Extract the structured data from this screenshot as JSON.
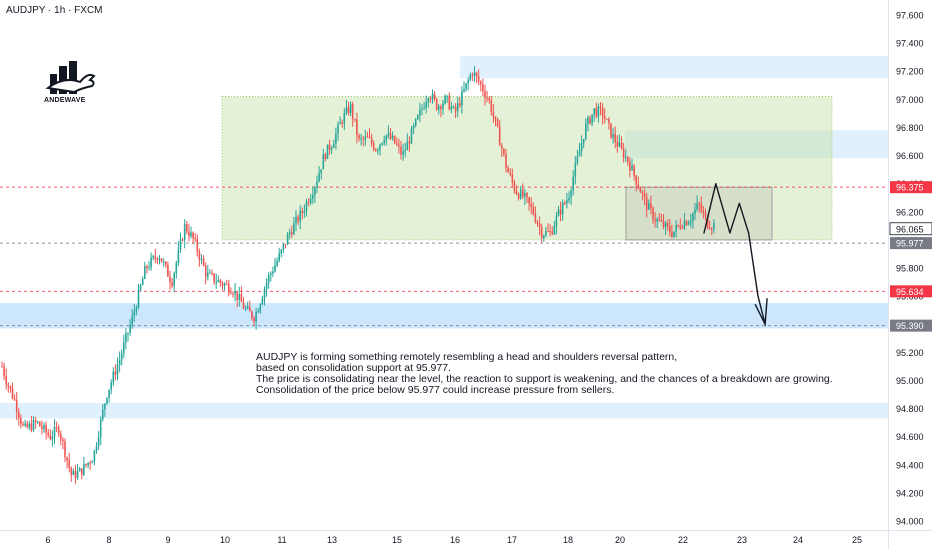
{
  "header": {
    "symbol_line": "AUDJPY · 1h · FXCM"
  },
  "logo": {
    "text": "ANDEWAVE",
    "icon": "bull-and-buildings-logo"
  },
  "annotation": {
    "lines": [
      "AUDJPY is forming something remotely resembling a head and shoulders reversal pattern,",
      "based on consolidation support at 95.977.",
      "The price is consolidating near the level, the reaction to support is weakening, and the chances of a breakdown are growing.",
      "Consolidation of the price below 95.977 could increase pressure from sellers."
    ]
  },
  "colors": {
    "up": "#26a69a",
    "down": "#ef5350",
    "range_box": "#c5e1a5",
    "zone": "#bbdefb",
    "marker_red": "#f23645",
    "marker_gray": "#787b86"
  },
  "chart_data": {
    "type": "candlestick",
    "title": "",
    "x_tick_labels": [
      "6",
      "8",
      "9",
      "10",
      "11",
      "13",
      "15",
      "16",
      "17",
      "18",
      "20",
      "22",
      "23",
      "24",
      "25"
    ],
    "y_ticks": [
      94.0,
      94.2,
      94.4,
      94.6,
      94.8,
      95.0,
      95.2,
      95.4,
      95.6,
      95.8,
      96.0,
      96.2,
      96.4,
      96.6,
      96.8,
      97.0,
      97.2,
      97.4,
      97.6
    ],
    "y_tick_labels": [
      "94.000",
      "94.200",
      "94.400",
      "94.600",
      "94.800",
      "95.000",
      "95.200",
      "95.400",
      "95.600",
      "95.800",
      "96.000",
      "96.200",
      "96.400",
      "96.600",
      "96.800",
      "97.000",
      "97.200",
      "97.400",
      "97.600"
    ],
    "y_range": [
      93.95,
      97.68
    ],
    "price_anchors": [
      [
        6,
        95.1
      ],
      [
        7,
        95.0
      ],
      [
        9,
        94.85
      ],
      [
        11,
        94.65
      ],
      [
        14,
        94.7
      ],
      [
        17,
        94.6
      ],
      [
        19,
        94.66
      ],
      [
        22,
        94.32
      ],
      [
        24,
        94.35
      ],
      [
        27,
        94.46
      ],
      [
        30,
        94.9
      ],
      [
        33,
        95.15
      ],
      [
        36,
        95.45
      ],
      [
        39,
        95.8
      ],
      [
        42,
        95.9
      ],
      [
        45,
        95.7
      ],
      [
        48,
        96.1
      ],
      [
        50,
        96.0
      ],
      [
        53,
        95.75
      ],
      [
        56,
        95.7
      ],
      [
        59,
        95.65
      ],
      [
        62,
        95.5
      ],
      [
        64,
        95.45
      ],
      [
        67,
        95.72
      ],
      [
        70,
        95.9
      ],
      [
        72,
        96.05
      ],
      [
        75,
        96.2
      ],
      [
        78,
        96.4
      ],
      [
        80,
        96.6
      ],
      [
        82,
        96.7
      ],
      [
        84,
        96.85
      ],
      [
        86,
        96.95
      ],
      [
        88,
        96.7
      ],
      [
        90,
        96.72
      ],
      [
        92,
        96.65
      ],
      [
        94,
        96.75
      ],
      [
        96,
        96.7
      ],
      [
        98,
        96.6
      ],
      [
        100,
        96.75
      ],
      [
        102,
        96.9
      ],
      [
        104,
        97.05
      ],
      [
        106,
        96.95
      ],
      [
        108,
        97.0
      ],
      [
        110,
        96.9
      ],
      [
        112,
        97.05
      ],
      [
        114,
        97.2
      ],
      [
        116,
        97.1
      ],
      [
        118,
        96.98
      ],
      [
        120,
        96.75
      ],
      [
        122,
        96.5
      ],
      [
        124,
        96.35
      ],
      [
        126,
        96.3
      ],
      [
        128,
        96.2
      ],
      [
        130,
        96.05
      ],
      [
        132,
        96.05
      ],
      [
        134,
        96.2
      ],
      [
        136,
        96.3
      ],
      [
        138,
        96.55
      ],
      [
        140,
        96.8
      ],
      [
        142,
        96.92
      ],
      [
        144,
        96.9
      ],
      [
        146,
        96.75
      ],
      [
        148,
        96.65
      ],
      [
        150,
        96.55
      ],
      [
        152,
        96.4
      ],
      [
        154,
        96.25
      ],
      [
        156,
        96.15
      ],
      [
        158,
        96.1
      ],
      [
        160,
        96.05
      ],
      [
        162,
        96.12
      ],
      [
        164,
        96.15
      ],
      [
        166,
        96.25
      ],
      [
        168,
        96.12
      ],
      [
        170,
        96.1
      ]
    ],
    "range_box": {
      "low": 96.0,
      "high": 97.02,
      "start_tick": "10",
      "end_tick": "24"
    },
    "consolidation_box": {
      "low": 96.0,
      "high": 96.375
    },
    "zones": [
      {
        "low": 95.37,
        "high": 95.55
      },
      {
        "low": 94.73,
        "high": 94.84
      },
      {
        "low": 96.58,
        "high": 96.78
      },
      {
        "low": 97.15,
        "high": 97.31
      }
    ],
    "levels": [
      {
        "value": 96.375,
        "label": "96.375",
        "style": "red"
      },
      {
        "value": 96.065,
        "label": "96.065",
        "style": "current"
      },
      {
        "value": 95.977,
        "label": "95.977",
        "style": "gray"
      },
      {
        "value": 95.634,
        "label": "95.634",
        "style": "red"
      },
      {
        "value": 95.39,
        "label": "95.390",
        "style": "gray"
      }
    ],
    "projection_path": [
      [
        0,
        96.05
      ],
      [
        0.5,
        96.4
      ],
      [
        1.1,
        96.05
      ],
      [
        1.5,
        96.26
      ],
      [
        1.9,
        96.05
      ],
      [
        2.3,
        95.6
      ],
      [
        2.6,
        95.4
      ]
    ]
  }
}
